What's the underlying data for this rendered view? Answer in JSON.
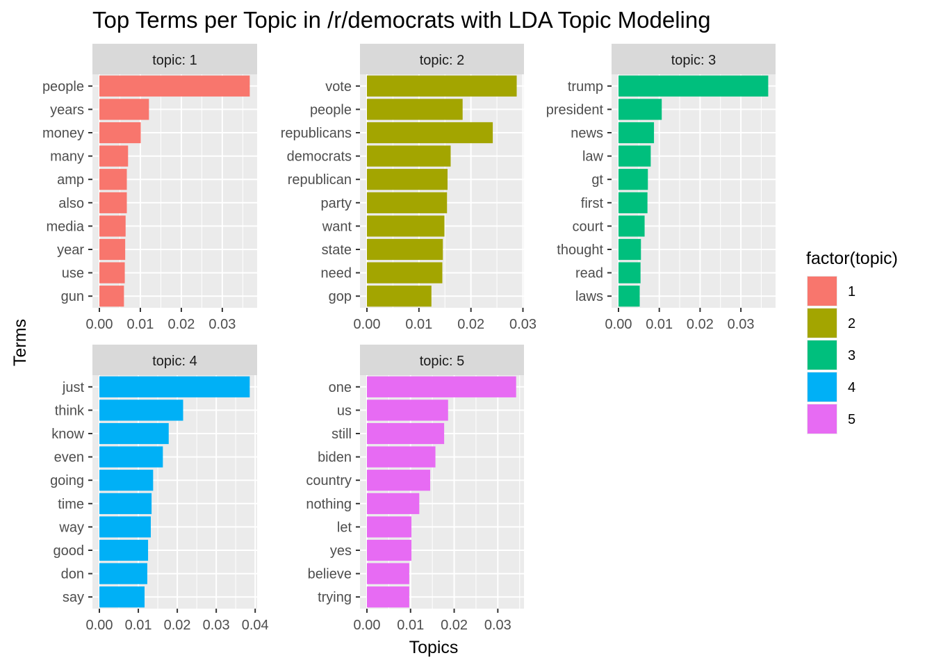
{
  "chart_data": {
    "type": "bar",
    "orientation": "horizontal",
    "title": "Top Terms per Topic in /r/democrats with LDA Topic Modeling",
    "xlabel": "Topics",
    "ylabel": "Terms",
    "legend": {
      "title": "factor(topic)",
      "placement": "right",
      "entries": [
        {
          "label": "1",
          "color": "#F8766D"
        },
        {
          "label": "2",
          "color": "#A3A500"
        },
        {
          "label": "3",
          "color": "#00BF7D"
        },
        {
          "label": "4",
          "color": "#00B0F6"
        },
        {
          "label": "5",
          "color": "#E76BF3"
        }
      ]
    },
    "grid": true,
    "facets": [
      {
        "strip": "topic: 1",
        "color": "#F8766D",
        "xlim": [
          0,
          0.0385
        ],
        "xticks": [
          "0.00",
          "0.01",
          "0.02",
          "0.03"
        ],
        "tick_values": [
          0,
          0.01,
          0.02,
          0.03
        ],
        "terms": [
          "people",
          "years",
          "money",
          "many",
          "amp",
          "also",
          "media",
          "year",
          "use",
          "gun"
        ],
        "values": [
          0.0367,
          0.0121,
          0.0101,
          0.007,
          0.0067,
          0.0067,
          0.0064,
          0.0063,
          0.0062,
          0.006
        ]
      },
      {
        "strip": "topic: 2",
        "color": "#A3A500",
        "xlim": [
          0,
          0.0302
        ],
        "xticks": [
          "0.00",
          "0.01",
          "0.02",
          "0.03"
        ],
        "tick_values": [
          0,
          0.01,
          0.02,
          0.03
        ],
        "terms": [
          "vote",
          "people",
          "republicans",
          "democrats",
          "republican",
          "party",
          "want",
          "state",
          "need",
          "gop"
        ],
        "values": [
          0.0288,
          0.0184,
          0.0242,
          0.0161,
          0.0155,
          0.0154,
          0.0149,
          0.0146,
          0.0145,
          0.0124
        ]
      },
      {
        "strip": "topic: 3",
        "color": "#00BF7D",
        "xlim": [
          0,
          0.0385
        ],
        "xticks": [
          "0.00",
          "0.01",
          "0.02",
          "0.03"
        ],
        "tick_values": [
          0,
          0.01,
          0.02,
          0.03
        ],
        "terms": [
          "trump",
          "president",
          "news",
          "law",
          "gt",
          "first",
          "court",
          "thought",
          "read",
          "laws"
        ],
        "values": [
          0.0367,
          0.0106,
          0.0087,
          0.0079,
          0.0072,
          0.0071,
          0.0064,
          0.0055,
          0.0054,
          0.0052
        ]
      },
      {
        "strip": "topic: 4",
        "color": "#00B0F6",
        "xlim": [
          0,
          0.0405
        ],
        "xticks": [
          "0.00",
          "0.01",
          "0.02",
          "0.03",
          "0.04"
        ],
        "tick_values": [
          0,
          0.01,
          0.02,
          0.03,
          0.04
        ],
        "terms": [
          "just",
          "think",
          "know",
          "even",
          "going",
          "time",
          "way",
          "good",
          "don",
          "say"
        ],
        "values": [
          0.0386,
          0.0215,
          0.0178,
          0.0163,
          0.0138,
          0.0134,
          0.0132,
          0.0125,
          0.0123,
          0.0116
        ]
      },
      {
        "strip": "topic: 5",
        "color": "#E76BF3",
        "xlim": [
          0,
          0.036
        ],
        "xticks": [
          "0.00",
          "0.01",
          "0.02",
          "0.03"
        ],
        "tick_values": [
          0,
          0.01,
          0.02,
          0.03
        ],
        "terms": [
          "one",
          "us",
          "still",
          "biden",
          "country",
          "nothing",
          "let",
          "yes",
          "believe",
          "trying"
        ],
        "values": [
          0.0342,
          0.0186,
          0.0177,
          0.0157,
          0.0145,
          0.012,
          0.0102,
          0.0102,
          0.0097,
          0.0097
        ]
      }
    ]
  }
}
